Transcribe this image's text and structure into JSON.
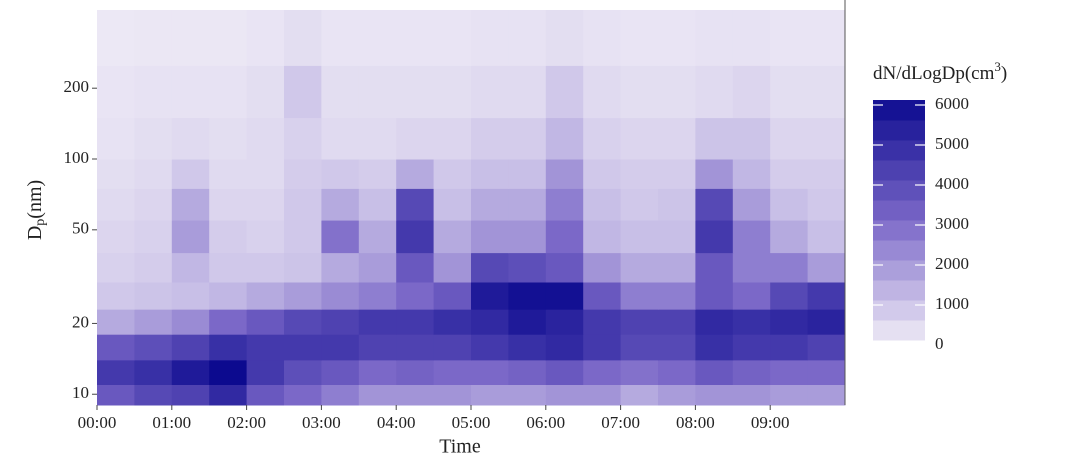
{
  "chart_data": {
    "type": "heatmap",
    "xlabel": "Time",
    "ylabel": [
      "D",
      "p",
      "(nm)"
    ],
    "legend_title": [
      "dN/dLogDp(cm",
      "3",
      ")"
    ],
    "xlim": [
      0,
      10
    ],
    "xticks": [
      {
        "value": 0,
        "label": "00:00"
      },
      {
        "value": 1,
        "label": "01:00"
      },
      {
        "value": 2,
        "label": "02:00"
      },
      {
        "value": 3,
        "label": "03:00"
      },
      {
        "value": 4,
        "label": "04:00"
      },
      {
        "value": 5,
        "label": "05:00"
      },
      {
        "value": 6,
        "label": "06:00"
      },
      {
        "value": 7,
        "label": "07:00"
      },
      {
        "value": 8,
        "label": "08:00"
      },
      {
        "value": 9,
        "label": "09:00"
      }
    ],
    "ylim": [
      9,
      430
    ],
    "yscale": "log",
    "yticks": [
      10,
      20,
      50,
      100,
      200
    ],
    "xbins": [
      0,
      0.5,
      1,
      1.5,
      2,
      2.5,
      3,
      3.5,
      4,
      4.5,
      5,
      5.5,
      6,
      6.5,
      7,
      7.5,
      8,
      8.5,
      9,
      9.5,
      10
    ],
    "ybins": [
      9,
      11,
      14,
      18,
      23,
      30,
      40,
      55,
      75,
      100,
      150,
      250,
      430
    ],
    "z": [
      [
        3500,
        4000,
        4200,
        5000,
        3500,
        3000,
        2500,
        2000,
        2000,
        2000,
        1800,
        1800,
        2000,
        2000,
        1500,
        1800,
        2000,
        2000,
        1800,
        1800
      ],
      [
        4500,
        4800,
        5500,
        6000,
        4500,
        3800,
        3500,
        3000,
        3200,
        3000,
        3000,
        3200,
        3500,
        3000,
        2800,
        3000,
        3500,
        3200,
        3000,
        3000
      ],
      [
        3500,
        3800,
        4200,
        4800,
        4500,
        4500,
        4500,
        4200,
        4200,
        4200,
        4500,
        4800,
        5000,
        4500,
        4000,
        4000,
        4800,
        4500,
        4500,
        4200
      ],
      [
        1500,
        1800,
        2200,
        3000,
        3500,
        4000,
        4200,
        4500,
        4500,
        4800,
        5000,
        5500,
        5200,
        4500,
        4200,
        4200,
        5000,
        4800,
        5000,
        5200
      ],
      [
        800,
        900,
        1000,
        1200,
        1500,
        1800,
        2200,
        2500,
        3000,
        3500,
        5500,
        5800,
        5800,
        3500,
        2500,
        2500,
        3500,
        3000,
        4000,
        4500
      ],
      [
        600,
        700,
        1200,
        800,
        800,
        900,
        1500,
        1800,
        3500,
        2000,
        4000,
        3800,
        3500,
        2000,
        1500,
        1500,
        3500,
        2500,
        2500,
        1800
      ],
      [
        500,
        600,
        1800,
        700,
        600,
        800,
        2800,
        1500,
        4500,
        1500,
        2000,
        2000,
        3000,
        1200,
        1000,
        1000,
        4500,
        2500,
        1500,
        1000
      ],
      [
        400,
        500,
        1500,
        500,
        500,
        800,
        1500,
        1000,
        4000,
        1000,
        1500,
        1500,
        2500,
        1000,
        800,
        900,
        4000,
        1800,
        1000,
        800
      ],
      [
        300,
        400,
        800,
        400,
        400,
        700,
        800,
        700,
        1500,
        800,
        1000,
        1000,
        2000,
        800,
        700,
        700,
        2000,
        1200,
        700,
        700
      ],
      [
        200,
        300,
        400,
        300,
        400,
        600,
        400,
        400,
        500,
        500,
        700,
        700,
        1200,
        600,
        500,
        500,
        900,
        900,
        500,
        500
      ],
      [
        150,
        200,
        200,
        200,
        300,
        800,
        300,
        300,
        300,
        300,
        400,
        400,
        800,
        400,
        300,
        300,
        400,
        500,
        300,
        300
      ],
      [
        80,
        100,
        100,
        100,
        150,
        300,
        150,
        150,
        150,
        150,
        200,
        200,
        300,
        200,
        150,
        150,
        200,
        200,
        150,
        150
      ]
    ],
    "clim": [
      0,
      6000
    ],
    "colorscale": [
      "#efebf6",
      "#7b68c8",
      "#0c0a8f"
    ],
    "legend_ticks": [
      0,
      1000,
      2000,
      3000,
      4000,
      5000,
      6000
    ]
  }
}
